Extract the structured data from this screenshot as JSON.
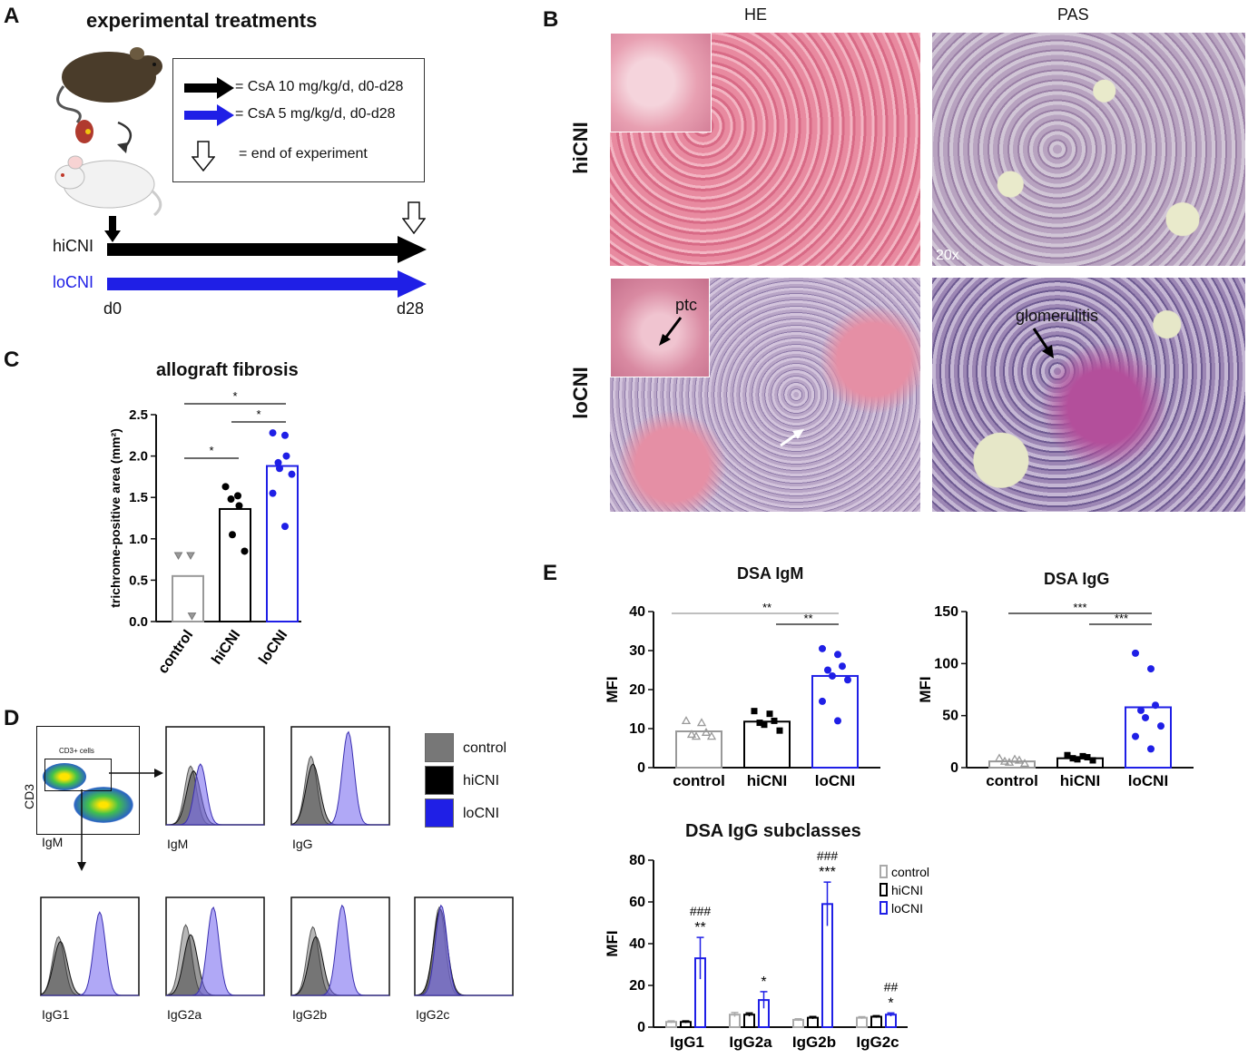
{
  "panel_labels": {
    "a": "A",
    "b": "B",
    "c": "C",
    "d": "D",
    "e": "E"
  },
  "panel_a": {
    "title": "experimental treatments",
    "legend": [
      {
        "label": "= CsA 10 mg/kg/d, d0-d28",
        "color": "#000000"
      },
      {
        "label": "= CsA 5 mg/kg/d, d0-d28",
        "color": "#1f1fe6"
      },
      {
        "label": "= end of experiment",
        "color": "#ffffff"
      }
    ],
    "groups": [
      {
        "label": "hiCNI",
        "color": "#000000"
      },
      {
        "label": "loCNI",
        "color": "#1f1fe6"
      }
    ],
    "start_label": "d0",
    "end_label": "d28"
  },
  "panel_b": {
    "col_headers": [
      "HE",
      "PAS"
    ],
    "row_headers": [
      "hiCNI",
      "loCNI"
    ],
    "magnification": "20x",
    "annotation_ptc": "ptc",
    "annotation_glom": "glomerulitis"
  },
  "chart_data": [
    {
      "id": "allograft-fibrosis",
      "type": "bar",
      "title": "allograft fibrosis",
      "ylabel": "trichrome-positive area (mm²)",
      "categories": [
        "control",
        "hiCNI",
        "loCNI"
      ],
      "values": [
        0.55,
        1.36,
        1.88
      ],
      "points": [
        [
          0.8,
          0.8,
          0.07
        ],
        [
          1.63,
          1.52,
          1.4,
          1.48,
          1.05,
          0.85
        ],
        [
          2.28,
          2.25,
          2.0,
          1.92,
          1.85,
          1.78,
          1.55,
          1.15
        ]
      ],
      "ylim": [
        0,
        2.5
      ],
      "yticks": [
        "0.0",
        "0.5",
        "1.0",
        "1.5",
        "2.0",
        "2.5"
      ],
      "colors": [
        "#999999",
        "#000000",
        "#1f1fe6"
      ],
      "significance": [
        "*",
        "*",
        "*"
      ]
    },
    {
      "id": "dsa-igm",
      "type": "bar",
      "title": "DSA IgM",
      "ylabel": "MFI",
      "categories": [
        "control",
        "hiCNI",
        "loCNI"
      ],
      "values": [
        9.3,
        11.8,
        23.5
      ],
      "points": [
        [
          12,
          11.5,
          9,
          8.5,
          8,
          8
        ],
        [
          14.5,
          13.8,
          12,
          11.5,
          11,
          9.5
        ],
        [
          30.5,
          29,
          26,
          25,
          23.5,
          22.5,
          17,
          12
        ]
      ],
      "ylim": [
        0,
        40
      ],
      "yticks": [
        "0",
        "10",
        "20",
        "30",
        "40"
      ],
      "colors": [
        "#999999",
        "#000000",
        "#1f1fe6"
      ],
      "significance": [
        "**",
        "**"
      ]
    },
    {
      "id": "dsa-igg",
      "type": "bar",
      "title": "DSA IgG",
      "ylabel": "MFI",
      "categories": [
        "control",
        "hiCNI",
        "loCNI"
      ],
      "values": [
        6,
        9,
        58
      ],
      "points": [
        [
          9,
          8,
          7,
          6,
          5,
          4
        ],
        [
          12,
          11,
          10,
          9,
          8,
          7
        ],
        [
          110,
          95,
          60,
          55,
          48,
          40,
          30,
          18
        ]
      ],
      "ylim": [
        0,
        150
      ],
      "yticks": [
        "0",
        "50",
        "100",
        "150"
      ],
      "colors": [
        "#999999",
        "#000000",
        "#1f1fe6"
      ],
      "significance": [
        "***",
        "***"
      ]
    },
    {
      "id": "dsa-igg-subclasses",
      "type": "bar",
      "title": "DSA IgG subclasses",
      "ylabel": "MFI",
      "categories": [
        "IgG1",
        "IgG2a",
        "IgG2b",
        "IgG2c"
      ],
      "series": [
        {
          "name": "control",
          "values": [
            2.5,
            6,
            3.5,
            4.5
          ],
          "err": [
            0.5,
            1,
            0.5,
            0.5
          ],
          "color": "#aaaaaa"
        },
        {
          "name": "hiCNI",
          "values": [
            2.5,
            6,
            4.5,
            5
          ],
          "err": [
            0.5,
            0.8,
            0.6,
            0.5
          ],
          "color": "#000000"
        },
        {
          "name": "loCNI",
          "values": [
            33,
            13,
            59,
            6
          ],
          "err": [
            10,
            4,
            10.5,
            0.8
          ],
          "color": "#1f1fe6"
        }
      ],
      "ylim": [
        0,
        80
      ],
      "yticks": [
        "0",
        "20",
        "40",
        "60",
        "80"
      ],
      "annotations": [
        {
          "cat": 0,
          "star": "**",
          "hash": "###"
        },
        {
          "cat": 1,
          "star": "*",
          "hash": ""
        },
        {
          "cat": 2,
          "star": "***",
          "hash": "###"
        },
        {
          "cat": 3,
          "star": "*",
          "hash": "##"
        }
      ]
    }
  ],
  "panel_d": {
    "gate_label": "CD3+ cells",
    "axis_y": "CD3",
    "axis_x": "IgM",
    "hist_labels": [
      "IgM",
      "IgG",
      "IgG1",
      "IgG2a",
      "IgG2b",
      "IgG2c"
    ],
    "legend": [
      {
        "label": "control",
        "color": "#777777"
      },
      {
        "label": "hiCNI",
        "color": "#000000"
      },
      {
        "label": "loCNI",
        "color": "#1f1fe6"
      }
    ]
  }
}
